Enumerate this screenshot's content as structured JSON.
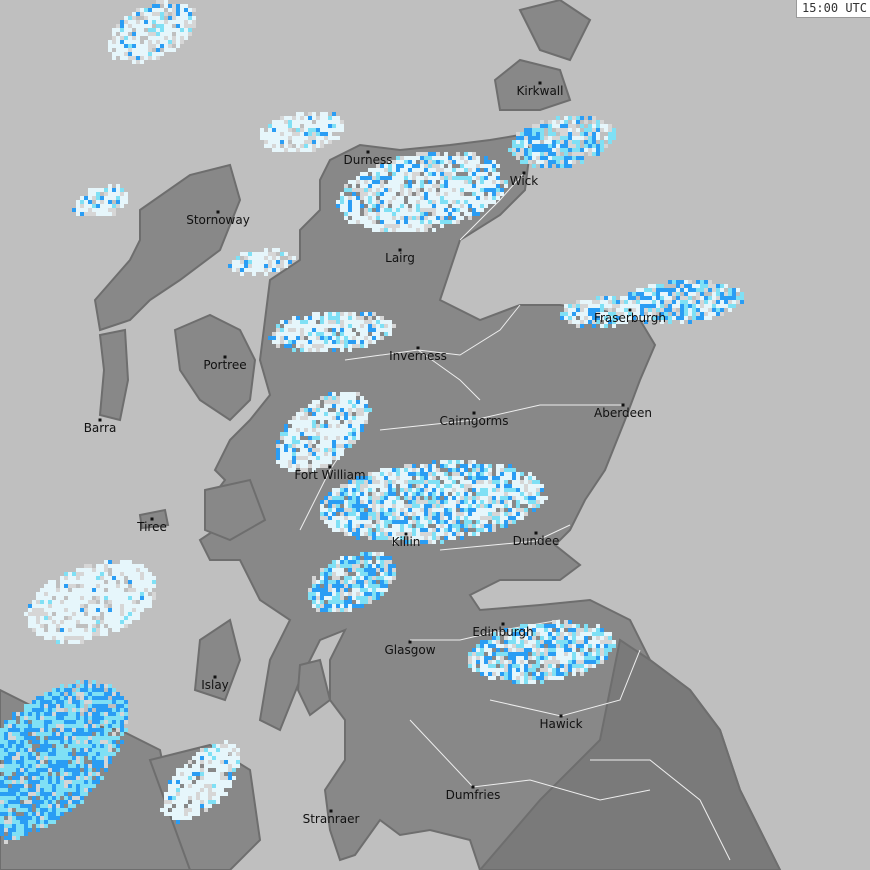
{
  "timestamp": "15:00 UTC",
  "colors": {
    "sea": "#bfbfbf",
    "land": "#888888",
    "england": "#7a7a7a",
    "rain_light": "#e6f6fb",
    "rain_mid": "#7fe0f5",
    "rain_heavy": "#2a9df4"
  },
  "cities": [
    {
      "name": "Kirkwall"
    },
    {
      "name": "Durness"
    },
    {
      "name": "Wick"
    },
    {
      "name": "Stornoway"
    },
    {
      "name": "Lairg"
    },
    {
      "name": "Fraserburgh"
    },
    {
      "name": "Portree"
    },
    {
      "name": "Inverness"
    },
    {
      "name": "Cairngorms"
    },
    {
      "name": "Aberdeen"
    },
    {
      "name": "Barra"
    },
    {
      "name": "Fort William"
    },
    {
      "name": "Tiree"
    },
    {
      "name": "Killin"
    },
    {
      "name": "Dundee"
    },
    {
      "name": "Edinburgh"
    },
    {
      "name": "Glasgow"
    },
    {
      "name": "Islay"
    },
    {
      "name": "Hawick"
    },
    {
      "name": "Dumfries"
    },
    {
      "name": "Stranraer"
    }
  ]
}
